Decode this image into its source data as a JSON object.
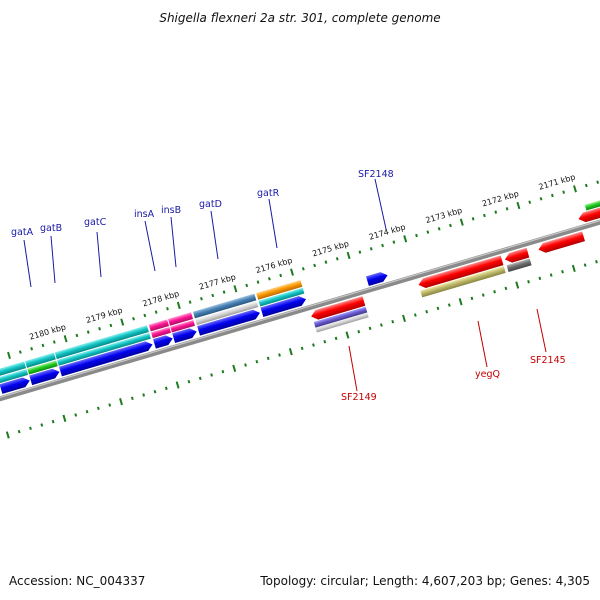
{
  "title": "Shigella flexneri 2a str. 301, complete genome",
  "footer": {
    "accession": "Accession: NC_004337",
    "summary": "Topology: circular; Length: 4,607,203 bp; Genes: 4,305"
  },
  "colors": {
    "forward_label": "#1a1aa6",
    "reverse_label": "#c40000",
    "backbone": "#888888",
    "tick": "#1e7a1e"
  },
  "kbp_labels": [
    "2180 kbp",
    "2179 kbp",
    "2178 kbp",
    "2177 kbp",
    "2176 kbp",
    "2175 kbp",
    "2174 kbp",
    "2173 kbp",
    "2172 kbp",
    "2171 kbp"
  ],
  "forward_genes": [
    "gatA",
    "gatB",
    "gatC",
    "insA",
    "insB",
    "gatD",
    "gatR",
    "SF2148"
  ],
  "reverse_genes": [
    "SF2149",
    "yegQ",
    "SF2145"
  ]
}
